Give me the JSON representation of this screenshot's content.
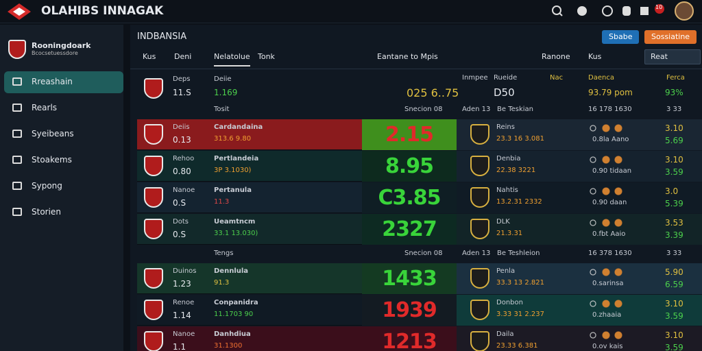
{
  "header": {
    "title": "OLAHIBS INNAGAK",
    "badge": "10"
  },
  "sidebar": {
    "brand": "Rooningdoark",
    "brand_sub": "Bcocsetuessdore",
    "items": [
      "Rreashain",
      "Rearls",
      "Syeibeans",
      "Stoakems",
      "Sypong",
      "Storien"
    ]
  },
  "main": {
    "title": "INDBANSIA",
    "buttons": [
      "Sbabe",
      "Sossiatine"
    ],
    "filters": [
      "Kus",
      "Deni",
      "Nelatolue",
      "Tonk",
      "Eantane to Mpis",
      "Ranone",
      "Kus",
      "Reat"
    ],
    "summary": {
      "label_a": "Deps",
      "value_a": "11.S",
      "label_b": "Deiie",
      "value_b": "1.169",
      "center": "025 6..75",
      "label_c": "Inmpee",
      "label_d": "Rueide",
      "value_d": "D50",
      "label_e": "Nac",
      "label_f": "Daenca",
      "value_f": "93.79 pom",
      "label_g": "Ferca",
      "value_g": "93%"
    },
    "sections": [
      {
        "label": "Tosit",
        "center": "Snecion 08",
        "tag": "Aden 13",
        "side": "Be Teskian",
        "stat": "16 178 1630",
        "end": "3 33",
        "rows": [
          {
            "name": "Deiis",
            "odds": "0.13",
            "event": "Cardandaina",
            "event_odds": "313.6 9.80",
            "center": "2.15",
            "right_name": "Reins",
            "right_odds": "23.3 16 3.081",
            "right_sub": "0.8la Aano",
            "val_a": "3.10",
            "val_b": "5.69"
          },
          {
            "name": "Rehoo",
            "odds": "0.80",
            "event": "Pertlandeia",
            "event_odds": "3P 3.1030)",
            "center": "8.95",
            "right_name": "Denbia",
            "right_odds": "22.38 3221",
            "right_sub": "0.90 tidaan",
            "val_a": "3.10",
            "val_b": "3.59"
          },
          {
            "name": "Nanoe",
            "odds": "0.S",
            "event": "Pertanula",
            "event_odds": "11.3",
            "center": "C3.85",
            "right_name": "Nahtis",
            "right_odds": "13.2.31 2332",
            "right_sub": "0.90 daan",
            "val_a": "3.0",
            "val_b": "5.39"
          },
          {
            "name": "Dots",
            "odds": "0.S",
            "event": "Ueamtncm",
            "event_odds": "33.1 13.030)",
            "center": "2327",
            "right_name": "DLK",
            "right_odds": "21.3.31",
            "right_sub": "0.fbt Aaio",
            "val_a": "3.53",
            "val_b": "3.39"
          }
        ]
      },
      {
        "label": "Tengs",
        "center": "Snecion 08",
        "tag": "Aden 13",
        "side": "Be Teshleion",
        "stat": "16 378 1630",
        "end": "3 33",
        "rows": [
          {
            "name": "Duinos",
            "odds": "1.23",
            "event": "Dennlula",
            "event_odds": "91.3",
            "center": "1433",
            "right_name": "Penla",
            "right_odds": "33.3 13 2.821",
            "right_sub": "0.sarinsa",
            "val_a": "5.90",
            "val_b": "6.59"
          },
          {
            "name": "Renoe",
            "odds": "1.14",
            "event": "Conpanidra",
            "event_odds": "11.1703 90",
            "center": "1939",
            "right_name": "Donbon",
            "right_odds": "3.33 31 2.237",
            "right_sub": "0.zhaaia",
            "val_a": "3.10",
            "val_b": "3.59"
          },
          {
            "name": "Nanoe",
            "odds": "1.1",
            "event": "Danhdiua",
            "event_odds": "31.1300",
            "center": "1213",
            "right_name": "Daila",
            "right_odds": "23.33 6.381",
            "right_sub": "0.ov kais",
            "val_a": "3.10",
            "val_b": "3.59"
          }
        ]
      }
    ]
  }
}
